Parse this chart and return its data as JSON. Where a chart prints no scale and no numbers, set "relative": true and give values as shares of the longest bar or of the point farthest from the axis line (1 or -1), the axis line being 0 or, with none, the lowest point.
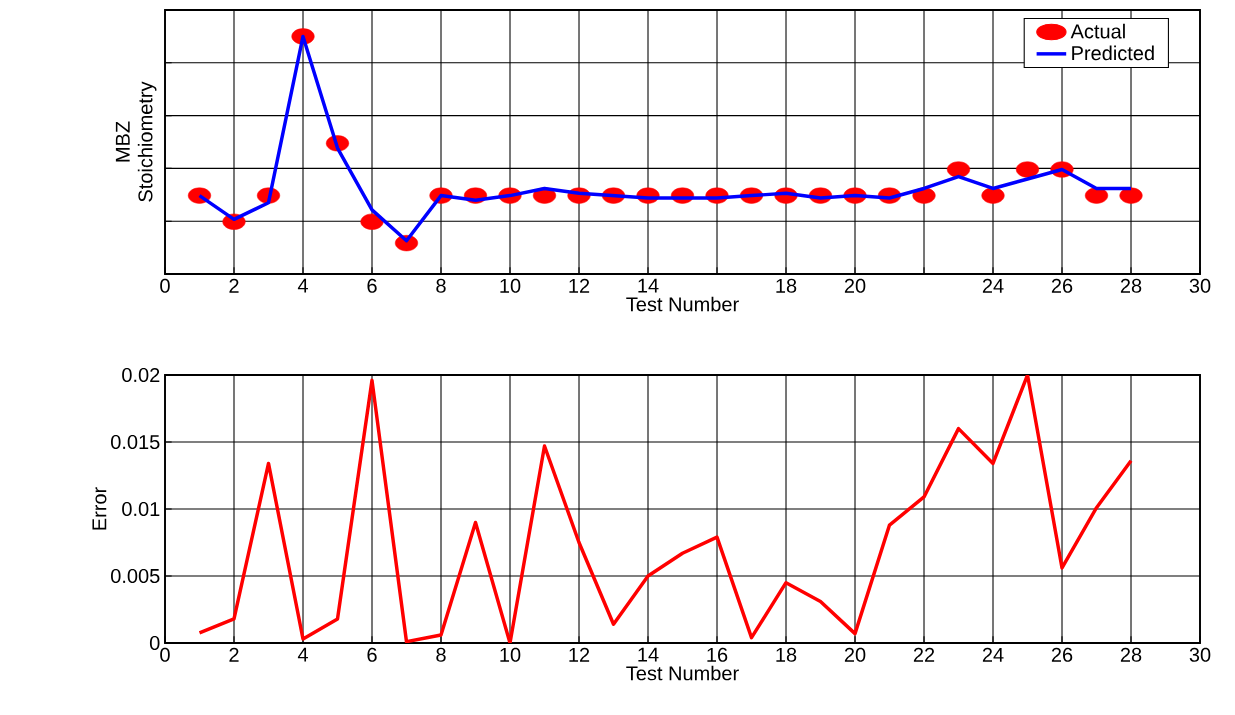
{
  "chart_data": [
    {
      "type": "line",
      "relative": true,
      "ylabel": "MBZ Stoichiometry",
      "xlabel": "Test Number",
      "x": [
        1,
        2,
        3,
        4,
        5,
        6,
        7,
        8,
        9,
        10,
        11,
        12,
        13,
        14,
        15,
        16,
        17,
        18,
        19,
        20,
        21,
        22,
        23,
        24,
        25,
        26,
        27,
        28
      ],
      "xlim": [
        0,
        30
      ],
      "xticks": [
        0,
        2,
        4,
        6,
        8,
        10,
        12,
        14,
        {
          "value": 16,
          "label": null
        },
        18,
        20,
        {
          "value": 22,
          "label": null
        },
        24,
        26,
        28,
        30
      ],
      "grid": true,
      "legend": "top right",
      "marker": "circle",
      "series": [
        {
          "name": "Actual",
          "type": "scatter",
          "color": "#ff0000",
          "values": [
            0.33,
            0.22,
            0.33,
            1,
            0.55,
            0.22,
            0.13,
            0.33,
            0.33,
            0.33,
            0.33,
            0.33,
            0.33,
            0.33,
            0.33,
            0.33,
            0.33,
            0.33,
            0.33,
            0.33,
            0.33,
            0.33,
            0.44,
            0.33,
            0.44,
            0.44,
            0.33,
            0.33
          ]
        },
        {
          "name": "Predicted",
          "type": "line",
          "marker": "none",
          "color": "#0000ff",
          "line_style": "solid",
          "values": [
            0.33,
            0.23,
            0.3,
            1,
            0.53,
            0.27,
            0.14,
            0.33,
            0.31,
            0.33,
            0.36,
            0.34,
            0.33,
            0.32,
            0.32,
            0.32,
            0.33,
            0.34,
            0.32,
            0.33,
            0.32,
            0.36,
            0.41,
            0.36,
            0.4,
            0.44,
            0.36,
            0.36
          ]
        }
      ]
    },
    {
      "type": "line",
      "ylabel": "Error",
      "xlabel": "Test Number",
      "x": [
        1,
        2,
        3,
        4,
        5,
        6,
        7,
        8,
        9,
        10,
        11,
        12,
        13,
        14,
        15,
        16,
        17,
        18,
        19,
        20,
        21,
        22,
        23,
        24,
        25,
        26,
        27,
        28
      ],
      "xlim": [
        0,
        30
      ],
      "xticks": [
        0,
        2,
        4,
        6,
        8,
        10,
        12,
        14,
        16,
        18,
        20,
        22,
        24,
        26,
        28,
        30
      ],
      "ylim": [
        0,
        0.02
      ],
      "yticks": [
        0,
        0.005,
        0.01,
        0.015,
        0.02
      ],
      "grid": true,
      "series": [
        {
          "color": "#ff0000",
          "line_style": "solid",
          "values": [
            0.00075,
            0.0018,
            0.0134,
            0.0003,
            0.0018,
            0.0196,
            0.0001,
            0.0006,
            0.009,
            0,
            0.0147,
            0.0075,
            0.0014,
            0.005,
            0.0067,
            0.0079,
            0.0004,
            0.0045,
            0.0031,
            0.0007,
            0.0088,
            0.0109,
            0.016,
            0.0134,
            0.02,
            0.0056,
            0.0101,
            0.0136
          ]
        }
      ]
    }
  ]
}
